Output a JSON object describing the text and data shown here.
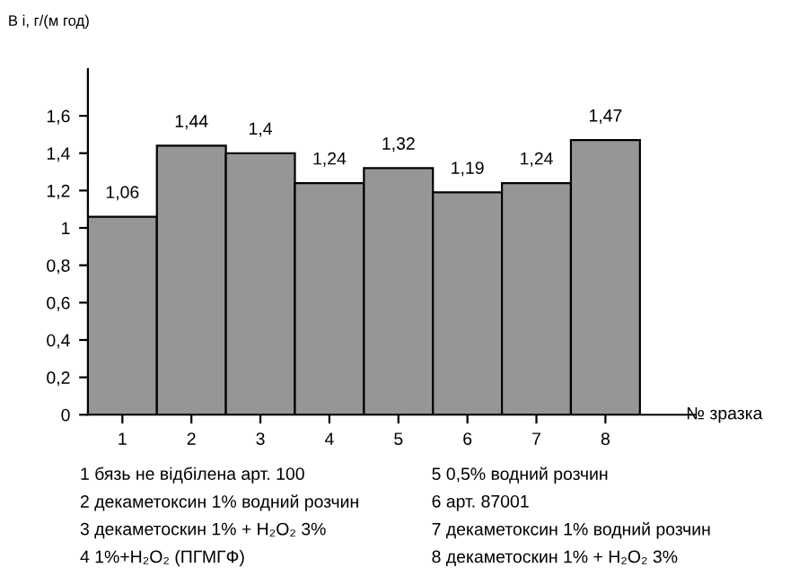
{
  "chart_data": {
    "type": "bar",
    "ylabel": "В і, г/(м год)",
    "xlabel": "№ зразка",
    "categories": [
      "1",
      "2",
      "3",
      "4",
      "5",
      "6",
      "7",
      "8"
    ],
    "values": [
      1.06,
      1.44,
      1.4,
      1.24,
      1.32,
      1.19,
      1.24,
      1.47
    ],
    "color": "#969696",
    "data_labels": true,
    "value_labels": [
      "1,06",
      "1,44",
      "1,4",
      "1,24",
      "1,32",
      "1,19",
      "1,24",
      "1,47"
    ],
    "ylim": [
      0,
      1.85
    ],
    "yticks": [
      0,
      {
        "value": 0.2,
        "label": "0,2"
      },
      {
        "value": 0.4,
        "label": "0,4"
      },
      {
        "value": 0.6,
        "label": "0,6"
      },
      {
        "value": 0.8,
        "label": "0,8"
      },
      1,
      {
        "value": 1.2,
        "label": "1,2"
      },
      {
        "value": 1.4,
        "label": "1,4"
      },
      {
        "value": 1.6,
        "label": "1,6"
      }
    ],
    "grid": false,
    "annotations": [
      "1 бязь не відбілена арт. 100",
      "2 декаметоксин 1% водний розчин",
      "3 декаметоскин 1% + H₂O₂ 3%",
      "4 1%+H₂O₂ (ПГМГФ)",
      "5 0,5% водний розчин",
      "6 арт. 87001",
      "7 декаметоксин 1% водний розчин",
      "8 декаметоскин 1% + H₂O₂ 3%"
    ]
  }
}
